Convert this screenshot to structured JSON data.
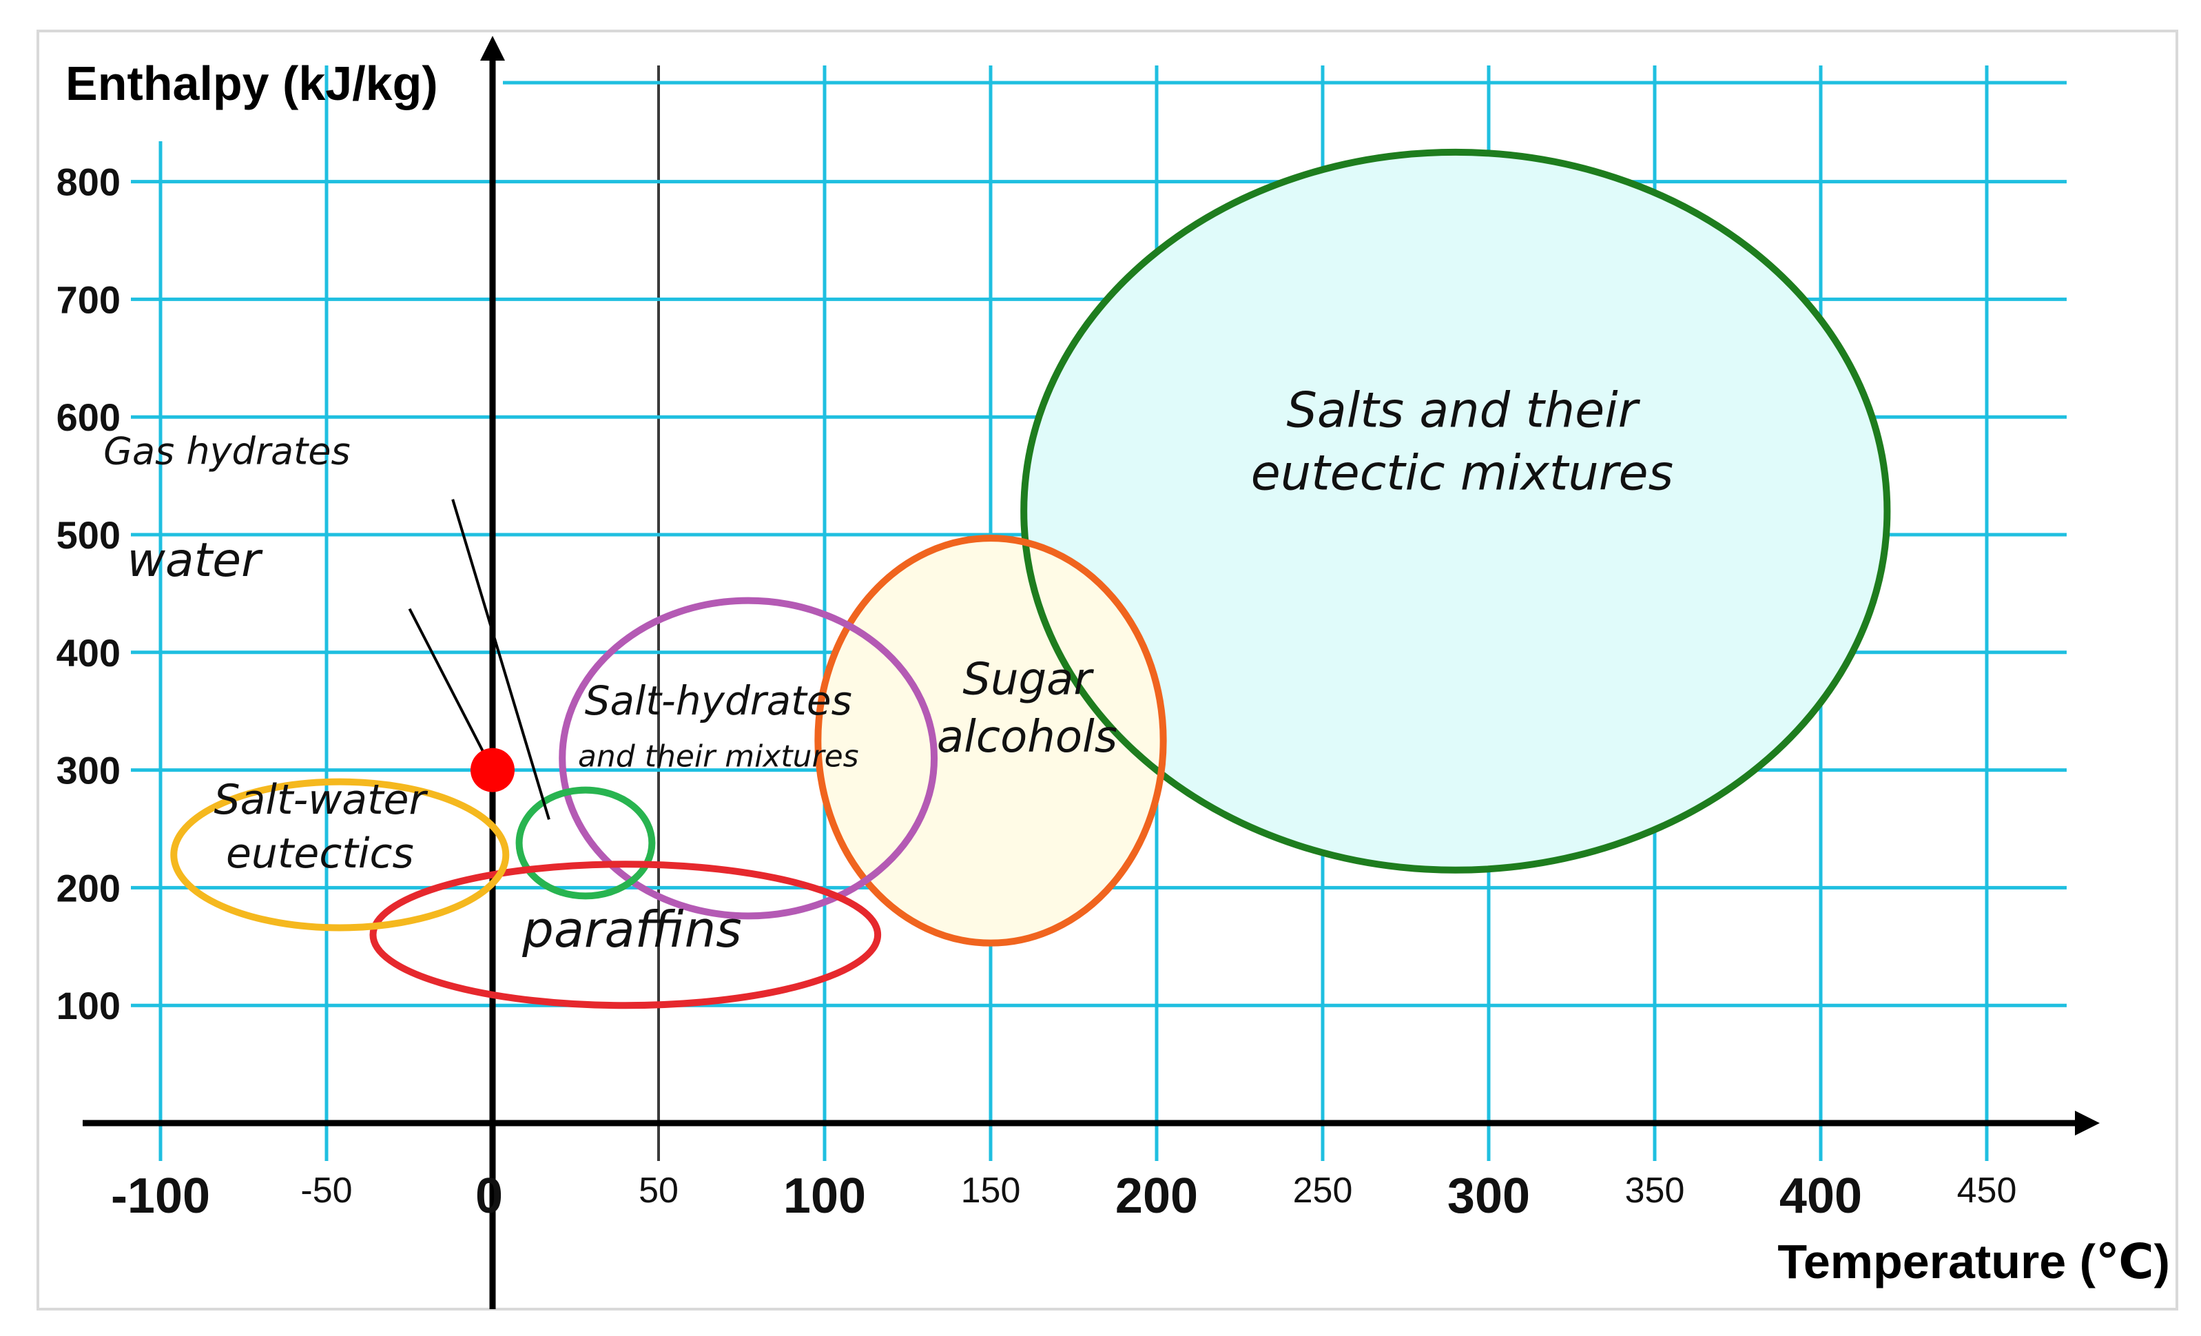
{
  "chart_data": {
    "type": "scatter",
    "title": "",
    "xlabel": "Temperature (℃)",
    "ylabel": "Enthalpy (kJ/kg)",
    "xlim": [
      -125,
      475
    ],
    "ylim": [
      0,
      870
    ],
    "x_ticks": [
      {
        "value": -100,
        "label": "-100",
        "style": "major"
      },
      {
        "value": -50,
        "label": "-50",
        "style": "minor"
      },
      {
        "value": 0,
        "label": "0",
        "style": "major"
      },
      {
        "value": 50,
        "label": "50",
        "style": "minor"
      },
      {
        "value": 100,
        "label": "100",
        "style": "major"
      },
      {
        "value": 150,
        "label": "150",
        "style": "minor"
      },
      {
        "value": 200,
        "label": "200",
        "style": "major"
      },
      {
        "value": 250,
        "label": "250",
        "style": "minor"
      },
      {
        "value": 300,
        "label": "300",
        "style": "major"
      },
      {
        "value": 350,
        "label": "350",
        "style": "minor"
      },
      {
        "value": 400,
        "label": "400",
        "style": "major"
      },
      {
        "value": 450,
        "label": "450",
        "style": "minor"
      }
    ],
    "y_ticks": [
      {
        "value": 100,
        "label": "100"
      },
      {
        "value": 200,
        "label": "200"
      },
      {
        "value": 300,
        "label": "300"
      },
      {
        "value": 400,
        "label": "400"
      },
      {
        "value": 500,
        "label": "500"
      },
      {
        "value": 600,
        "label": "600"
      },
      {
        "value": 700,
        "label": "700"
      },
      {
        "value": 800,
        "label": "800"
      }
    ],
    "grid": true,
    "grid_color": "#1fbfe0",
    "regions": [
      {
        "name": "Salts and their eutectic mixtures",
        "label_lines": [
          "Salts and their",
          "eutectic mixtures"
        ],
        "cx": 290,
        "cy": 520,
        "rx": 130,
        "ry": 305,
        "stroke": "#1e7d1e",
        "fill": "#e0fbfa",
        "label_x": 292,
        "label_y": 565,
        "label_size": 70
      },
      {
        "name": "Sugar alcohols",
        "label_lines": [
          "Sugar",
          "alcohols"
        ],
        "cx": 150,
        "cy": 325,
        "rx": 52,
        "ry": 172,
        "stroke": "#f0641e",
        "fill": "#fffbe6",
        "label_x": 161,
        "label_y": 340,
        "label_size": 64
      },
      {
        "name": "Salt-hydrates and their mixtures",
        "label_lines": [
          "Salt-hydrates",
          "and their mixtures"
        ],
        "cx": 77,
        "cy": 310,
        "rx": 56,
        "ry": 134,
        "stroke": "#b45ab4",
        "fill": "none",
        "label_x": 68,
        "label_y": 325,
        "label_size": 58,
        "label_size_2": 44
      },
      {
        "name": "Gas hydrates",
        "label_lines": [],
        "cx": 28,
        "cy": 238,
        "rx": 20,
        "ry": 45,
        "stroke": "#28b450",
        "fill": "none"
      },
      {
        "name": "paraffins",
        "label_lines": [
          "paraffins"
        ],
        "cx": 40,
        "cy": 160,
        "rx": 76,
        "ry": 60,
        "stroke": "#e6282d",
        "fill": "none",
        "label_x": 42,
        "label_y": 150,
        "label_size": 72
      },
      {
        "name": "Salt-water eutectics",
        "label_lines": [
          "Salt-water",
          "eutectics"
        ],
        "cx": -46,
        "cy": 228,
        "rx": 50,
        "ry": 62,
        "stroke": "#f5b81e",
        "fill": "none",
        "label_x": -52,
        "label_y": 240,
        "label_size": 60
      }
    ],
    "points": [
      {
        "name": "water",
        "x": 0,
        "y": 300,
        "color": "#ff0000"
      }
    ],
    "annotations": [
      {
        "text": "water",
        "label_x": -90,
        "label_y": 465,
        "label_size": 68,
        "from_x": -25,
        "from_y": 437,
        "to_x": 0,
        "to_y": 300
      },
      {
        "text": "Gas hydrates",
        "label_x": -80,
        "label_y": 560,
        "label_size": 54,
        "from_x": -12,
        "from_y": 530,
        "to_x": 17,
        "to_y": 258
      }
    ],
    "emphasized_gridline_x": 50
  }
}
